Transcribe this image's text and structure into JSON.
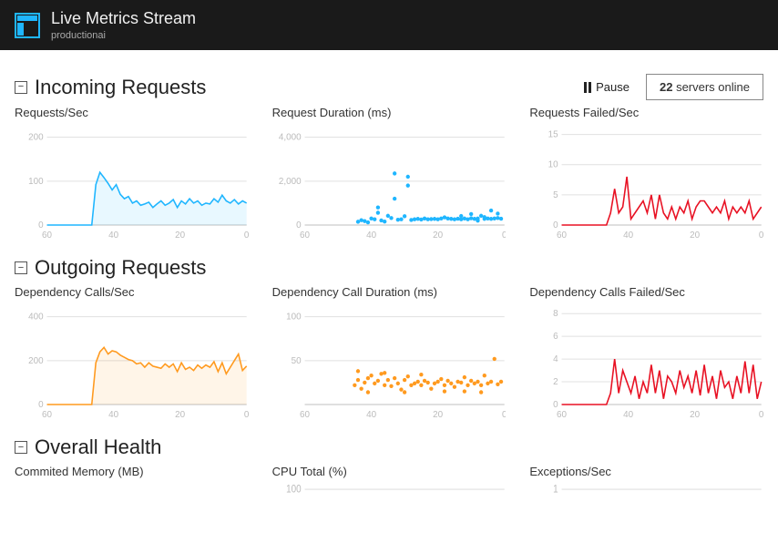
{
  "header": {
    "title": "Live Metrics Stream",
    "subtitle": "productionai",
    "logo_colors": {
      "border": "#1fb6ff",
      "fill": "#1fb6ff"
    }
  },
  "controls": {
    "pause_label": "Pause",
    "servers_count": "22",
    "servers_suffix": "servers online"
  },
  "palette": {
    "axis": "#bfbfbf",
    "grid": "#e0e0e0",
    "tick_text": "#bbbbbb",
    "blue": "#1fb6ff",
    "orange": "#ff9a1f",
    "red": "#e81123"
  },
  "sections": [
    {
      "id": "incoming",
      "title": "Incoming Requests",
      "charts": [
        {
          "title": "Requests/Sec",
          "type": "line",
          "color_key": "blue",
          "fill_below": true,
          "y_max": 220,
          "y_ticks": [
            0,
            100,
            200
          ],
          "x_ticks": [
            60,
            40,
            20,
            0
          ],
          "data": [
            0,
            0,
            0,
            0,
            0,
            0,
            0,
            0,
            0,
            0,
            0,
            0,
            92,
            120,
            108,
            95,
            80,
            92,
            70,
            60,
            65,
            50,
            55,
            45,
            48,
            52,
            40,
            48,
            55,
            45,
            50,
            58,
            40,
            55,
            48,
            60,
            50,
            55,
            45,
            50,
            48,
            60,
            52,
            68,
            55,
            50,
            58,
            48,
            55,
            50
          ]
        },
        {
          "title": "Request Duration (ms)",
          "type": "scatter",
          "color_key": "blue",
          "y_max": 4400,
          "y_ticks": [
            0,
            2000,
            4000
          ],
          "x_ticks": [
            60,
            40,
            20,
            0
          ],
          "data": [
            [
              44,
              150
            ],
            [
              43,
              220
            ],
            [
              42,
              180
            ],
            [
              41,
              120
            ],
            [
              40,
              300
            ],
            [
              39,
              260
            ],
            [
              38,
              800
            ],
            [
              38,
              560
            ],
            [
              37,
              210
            ],
            [
              36,
              160
            ],
            [
              35,
              420
            ],
            [
              34,
              320
            ],
            [
              33,
              1200
            ],
            [
              33,
              2350
            ],
            [
              32,
              240
            ],
            [
              31,
              260
            ],
            [
              30,
              400
            ],
            [
              29,
              1800
            ],
            [
              29,
              2200
            ],
            [
              28,
              230
            ],
            [
              27,
              260
            ],
            [
              26,
              280
            ],
            [
              25,
              250
            ],
            [
              24,
              300
            ],
            [
              23,
              260
            ],
            [
              22,
              270
            ],
            [
              21,
              280
            ],
            [
              20,
              260
            ],
            [
              19,
              300
            ],
            [
              18,
              350
            ],
            [
              17,
              300
            ],
            [
              16,
              280
            ],
            [
              15,
              260
            ],
            [
              14,
              290
            ],
            [
              13,
              260
            ],
            [
              12,
              300
            ],
            [
              11,
              260
            ],
            [
              10,
              310
            ],
            [
              9,
              280
            ],
            [
              8,
              300
            ],
            [
              7,
              420
            ],
            [
              6,
              280
            ],
            [
              5,
              300
            ],
            [
              4,
              280
            ],
            [
              3,
              300
            ],
            [
              2,
              320
            ],
            [
              1,
              290
            ],
            [
              2,
              520
            ],
            [
              4,
              660
            ],
            [
              6,
              360
            ],
            [
              8,
              200
            ],
            [
              10,
              500
            ],
            [
              13,
              410
            ]
          ]
        },
        {
          "title": "Requests Failed/Sec",
          "type": "line",
          "color_key": "red",
          "fill_below": false,
          "y_max": 16,
          "y_ticks": [
            0,
            5,
            10,
            15
          ],
          "x_ticks": [
            60,
            40,
            20,
            0
          ],
          "data": [
            0,
            0,
            0,
            0,
            0,
            0,
            0,
            0,
            0,
            0,
            0,
            0,
            2,
            6,
            2,
            3,
            8,
            1,
            2,
            3,
            4,
            2,
            5,
            1,
            5,
            2,
            1,
            3,
            1,
            3,
            2,
            4,
            1,
            3,
            4,
            4,
            3,
            2,
            3,
            2,
            4,
            1,
            3,
            2,
            3,
            2,
            4,
            1,
            2,
            3
          ]
        }
      ]
    },
    {
      "id": "outgoing",
      "title": "Outgoing Requests",
      "charts": [
        {
          "title": "Dependency Calls/Sec",
          "type": "line",
          "color_key": "orange",
          "fill_below": true,
          "y_max": 440,
          "y_ticks": [
            0,
            200,
            400
          ],
          "x_ticks": [
            60,
            40,
            20,
            0
          ],
          "data": [
            0,
            0,
            0,
            0,
            0,
            0,
            0,
            0,
            0,
            0,
            0,
            0,
            190,
            240,
            260,
            230,
            245,
            240,
            225,
            215,
            205,
            200,
            185,
            190,
            170,
            190,
            175,
            170,
            165,
            185,
            170,
            185,
            150,
            190,
            160,
            170,
            155,
            180,
            165,
            180,
            170,
            195,
            150,
            190,
            140,
            170,
            200,
            230,
            155,
            175
          ]
        },
        {
          "title": "Dependency Call Duration (ms)",
          "type": "scatter",
          "color_key": "orange",
          "y_max": 110,
          "y_ticks": [
            50,
            100
          ],
          "x_ticks": [
            60,
            40,
            20,
            0
          ],
          "data": [
            [
              45,
              22
            ],
            [
              44,
              28
            ],
            [
              43,
              18
            ],
            [
              42,
              25
            ],
            [
              41,
              30
            ],
            [
              40,
              33
            ],
            [
              39,
              24
            ],
            [
              38,
              27
            ],
            [
              37,
              35
            ],
            [
              36,
              22
            ],
            [
              35,
              28
            ],
            [
              34,
              21
            ],
            [
              33,
              30
            ],
            [
              32,
              24
            ],
            [
              31,
              17
            ],
            [
              30,
              28
            ],
            [
              29,
              32
            ],
            [
              28,
              22
            ],
            [
              27,
              24
            ],
            [
              26,
              26
            ],
            [
              25,
              22
            ],
            [
              24,
              27
            ],
            [
              23,
              25
            ],
            [
              22,
              18
            ],
            [
              21,
              24
            ],
            [
              20,
              26
            ],
            [
              19,
              29
            ],
            [
              18,
              22
            ],
            [
              17,
              27
            ],
            [
              16,
              24
            ],
            [
              15,
              20
            ],
            [
              14,
              26
            ],
            [
              13,
              25
            ],
            [
              12,
              31
            ],
            [
              11,
              22
            ],
            [
              10,
              27
            ],
            [
              9,
              24
            ],
            [
              8,
              26
            ],
            [
              7,
              22
            ],
            [
              6,
              33
            ],
            [
              5,
              24
            ],
            [
              4,
              26
            ],
            [
              3,
              52
            ],
            [
              2,
              23
            ],
            [
              1,
              26
            ],
            [
              44,
              38
            ],
            [
              41,
              14
            ],
            [
              36,
              36
            ],
            [
              30,
              14
            ],
            [
              25,
              34
            ],
            [
              18,
              15
            ],
            [
              12,
              15
            ],
            [
              7,
              14
            ]
          ]
        },
        {
          "title": "Dependency Calls Failed/Sec",
          "type": "line",
          "color_key": "red",
          "fill_below": false,
          "y_max": 8.5,
          "y_ticks": [
            0,
            2,
            4,
            6,
            8
          ],
          "x_ticks": [
            60,
            40,
            20,
            0
          ],
          "data": [
            0,
            0,
            0,
            0,
            0,
            0,
            0,
            0,
            0,
            0,
            0,
            0,
            1,
            4,
            1,
            3,
            2,
            1,
            2.5,
            0.5,
            2,
            1,
            3.5,
            1,
            3,
            0.5,
            2.5,
            2,
            1,
            3,
            1.5,
            2.5,
            1,
            3,
            0.8,
            3.5,
            1,
            2.5,
            0.5,
            3,
            1.5,
            2,
            0.5,
            2.5,
            1,
            3.8,
            1,
            3.5,
            0.5,
            2
          ]
        }
      ]
    },
    {
      "id": "health",
      "title": "Overall Health",
      "truncated": true,
      "charts": [
        {
          "title": "Commited Memory (MB)",
          "type": "line",
          "color_key": "blue",
          "y_max": 100,
          "y_ticks": [],
          "x_ticks": [],
          "data": []
        },
        {
          "title": "CPU Total (%)",
          "type": "line",
          "color_key": "blue",
          "y_max": 110,
          "y_ticks": [
            100
          ],
          "x_ticks": [],
          "data": []
        },
        {
          "title": "Exceptions/Sec",
          "type": "line",
          "color_key": "blue",
          "y_max": 1.1,
          "y_ticks": [
            1.0
          ],
          "x_ticks": [],
          "data": []
        }
      ]
    }
  ]
}
